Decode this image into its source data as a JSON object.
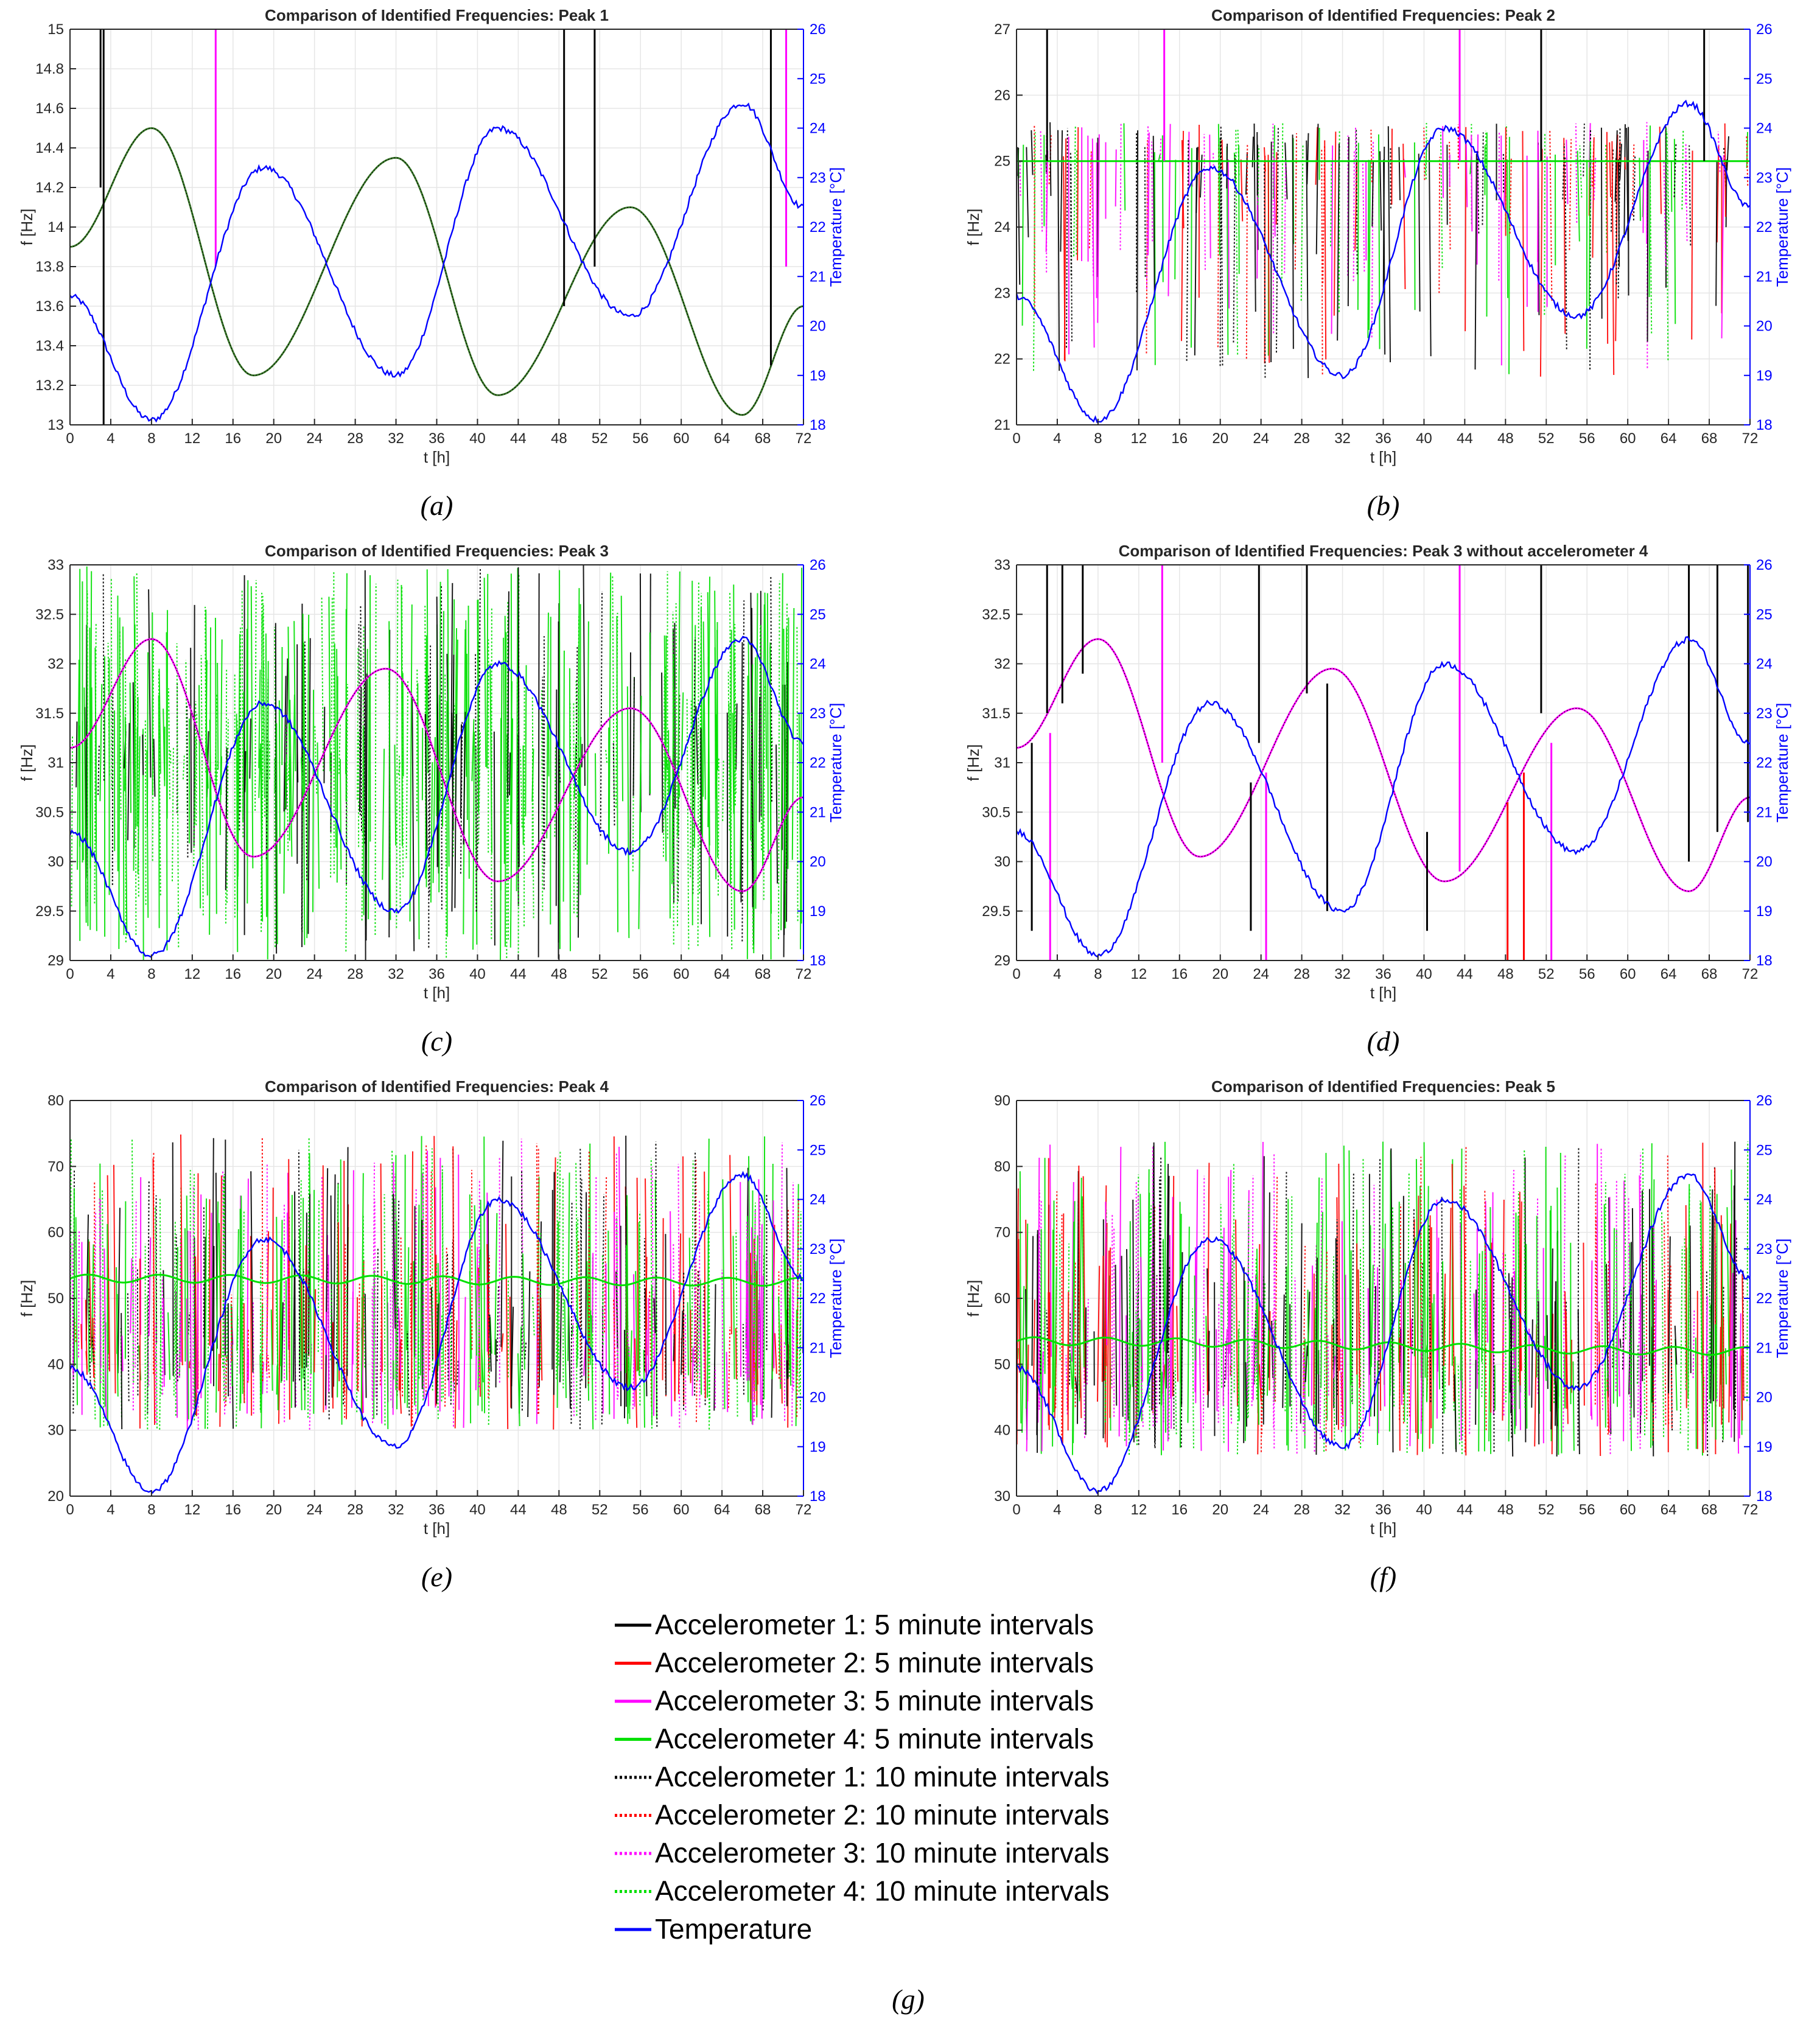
{
  "colors": {
    "acc1": "#000000",
    "acc2": "#ff0000",
    "acc3": "#ff00ff",
    "acc4": "#00e000",
    "temp": "#0000ff",
    "grid": "#e6e6e6",
    "axis": "#262626"
  },
  "legend": [
    {
      "label": "Accelerometer 1: 5 minute intervals",
      "color": "#000000",
      "dash": "solid"
    },
    {
      "label": "Accelerometer 2: 5 minute intervals",
      "color": "#ff0000",
      "dash": "solid"
    },
    {
      "label": "Accelerometer 3: 5 minute intervals",
      "color": "#ff00ff",
      "dash": "solid"
    },
    {
      "label": "Accelerometer 4: 5 minute intervals",
      "color": "#00e000",
      "dash": "solid"
    },
    {
      "label": "Accelerometer 1: 10 minute intervals",
      "color": "#000000",
      "dash": "dotted"
    },
    {
      "label": "Accelerometer 2: 10 minute intervals",
      "color": "#ff0000",
      "dash": "dotted"
    },
    {
      "label": "Accelerometer 3: 10 minute intervals",
      "color": "#ff00ff",
      "dash": "dotted"
    },
    {
      "label": "Accelerometer 4: 10 minute intervals",
      "color": "#00e000",
      "dash": "dotted"
    },
    {
      "label": "Temperature",
      "color": "#0000ff",
      "dash": "solid"
    }
  ],
  "legend_caption": "(g)",
  "chart_data": [
    {
      "type": "line",
      "panel": "(a)",
      "title": "Comparison of Identified Frequencies: Peak 1",
      "xlabel": "t [h]",
      "ylabel": "f [Hz]",
      "y2label": "Temperature [°C]",
      "xlim": [
        0,
        72
      ],
      "ylim": [
        13,
        15
      ],
      "y2lim": [
        18,
        26
      ],
      "xticks": [
        "0",
        "4",
        "8",
        "12",
        "16",
        "20",
        "24",
        "28",
        "32",
        "36",
        "40",
        "44",
        "48",
        "52",
        "56",
        "60",
        "64",
        "68",
        "72"
      ],
      "yticks": [
        "13",
        "13.2",
        "13.4",
        "13.6",
        "13.8",
        "14",
        "14.2",
        "14.4",
        "14.6",
        "14.8",
        "15"
      ],
      "y2ticks": [
        "18",
        "19",
        "20",
        "21",
        "22",
        "23",
        "24",
        "25",
        "26"
      ],
      "freq_curve": {
        "x": [
          0,
          8,
          18,
          32,
          42,
          55,
          66,
          72
        ],
        "y": [
          13.9,
          14.5,
          13.25,
          14.35,
          13.15,
          14.1,
          13.05,
          13.6
        ]
      },
      "temperature": {
        "x": [
          0,
          8,
          19,
          32,
          42,
          55,
          66,
          72
        ],
        "y": [
          20.6,
          18.1,
          23.2,
          19.0,
          24.0,
          20.2,
          24.5,
          22.4
        ]
      },
      "spikes": [
        {
          "t": 3.0,
          "from": 14.2,
          "to": 15,
          "series": "acc1"
        },
        {
          "t": 3.3,
          "from": 13,
          "to": 15,
          "series": "acc1"
        },
        {
          "t": 14.3,
          "from": 13.8,
          "to": 15,
          "series": "acc3"
        },
        {
          "t": 48.5,
          "from": 13.6,
          "to": 15,
          "series": "acc1"
        },
        {
          "t": 51.5,
          "from": 13.8,
          "to": 15,
          "series": "acc1"
        },
        {
          "t": 68.8,
          "from": 13.3,
          "to": 15,
          "series": "acc1"
        },
        {
          "t": 70.3,
          "from": 13.8,
          "to": 15,
          "series": "acc3"
        }
      ],
      "noise": null
    },
    {
      "type": "line",
      "panel": "(b)",
      "title": "Comparison of Identified Frequencies: Peak 2",
      "xlabel": "t [h]",
      "ylabel": "f [Hz]",
      "y2label": "Temperature [°C]",
      "xlim": [
        0,
        72
      ],
      "ylim": [
        21,
        27
      ],
      "y2lim": [
        18,
        26
      ],
      "xticks": [
        "0",
        "4",
        "8",
        "12",
        "16",
        "20",
        "24",
        "28",
        "32",
        "36",
        "40",
        "44",
        "48",
        "52",
        "56",
        "60",
        "64",
        "68",
        "72"
      ],
      "yticks": [
        "21",
        "22",
        "23",
        "24",
        "25",
        "26",
        "27"
      ],
      "y2ticks": [
        "18",
        "19",
        "20",
        "21",
        "22",
        "23",
        "24",
        "25",
        "26"
      ],
      "freq_curve": {
        "x": [
          0,
          72
        ],
        "y": [
          25.0,
          25.0
        ]
      },
      "temperature": {
        "x": [
          0,
          8,
          19,
          32,
          42,
          55,
          66,
          72
        ],
        "y": [
          20.6,
          18.1,
          23.2,
          19.0,
          24.0,
          20.2,
          24.5,
          22.4
        ]
      },
      "spikes": [
        {
          "t": 3.0,
          "from": 25,
          "to": 27,
          "series": "acc1"
        },
        {
          "t": 14.5,
          "from": 25,
          "to": 27,
          "series": "acc3"
        },
        {
          "t": 43.5,
          "from": 25,
          "to": 27,
          "series": "acc3"
        },
        {
          "t": 51.5,
          "from": 25,
          "to": 27,
          "series": "acc1"
        },
        {
          "t": 67.5,
          "from": 25,
          "to": 27,
          "series": "acc1"
        }
      ],
      "noise": {
        "center": 25.0,
        "low": 21.7,
        "high": 25.6,
        "density": 260,
        "colors": [
          "acc1",
          "acc2",
          "acc3",
          "acc4"
        ]
      }
    },
    {
      "type": "line",
      "panel": "(c)",
      "title": "Comparison of Identified Frequencies: Peak 3",
      "xlabel": "t [h]",
      "ylabel": "f [Hz]",
      "y2label": "Temperature [°C]",
      "xlim": [
        0,
        72
      ],
      "ylim": [
        29,
        33
      ],
      "y2lim": [
        18,
        26
      ],
      "xticks": [
        "0",
        "4",
        "8",
        "12",
        "16",
        "20",
        "24",
        "28",
        "32",
        "36",
        "40",
        "44",
        "48",
        "52",
        "56",
        "60",
        "64",
        "68",
        "72"
      ],
      "yticks": [
        "29",
        "29.5",
        "30",
        "30.5",
        "31",
        "31.5",
        "32",
        "32.5",
        "33"
      ],
      "y2ticks": [
        "18",
        "19",
        "20",
        "21",
        "22",
        "23",
        "24",
        "25",
        "26"
      ],
      "freq_curve": {
        "x": [
          0,
          8,
          18,
          31,
          42,
          55,
          66,
          72
        ],
        "y": [
          31.15,
          32.25,
          30.05,
          31.95,
          29.8,
          31.55,
          29.7,
          30.65
        ]
      },
      "temperature": {
        "x": [
          0,
          8,
          19,
          32,
          42,
          55,
          66,
          72
        ],
        "y": [
          20.6,
          18.1,
          23.2,
          19.0,
          24.0,
          20.2,
          24.5,
          22.4
        ]
      },
      "spikes": [],
      "noise": {
        "center": 31.0,
        "low": 29.0,
        "high": 33.0,
        "density": 420,
        "colors": [
          "acc4",
          "acc4",
          "acc4",
          "acc1"
        ]
      }
    },
    {
      "type": "line",
      "panel": "(d)",
      "title": "Comparison of Identified Frequencies: Peak 3 without accelerometer 4",
      "xlabel": "t [h]",
      "ylabel": "f [Hz]",
      "y2label": "Temperature [°C]",
      "xlim": [
        0,
        72
      ],
      "ylim": [
        29,
        33
      ],
      "y2lim": [
        18,
        26
      ],
      "xticks": [
        "0",
        "4",
        "8",
        "12",
        "16",
        "20",
        "24",
        "28",
        "32",
        "36",
        "40",
        "44",
        "48",
        "52",
        "56",
        "60",
        "64",
        "68",
        "72"
      ],
      "yticks": [
        "29",
        "29.5",
        "30",
        "30.5",
        "31",
        "31.5",
        "32",
        "32.5",
        "33"
      ],
      "y2ticks": [
        "18",
        "19",
        "20",
        "21",
        "22",
        "23",
        "24",
        "25",
        "26"
      ],
      "freq_curve": {
        "x": [
          0,
          8,
          18,
          31,
          42,
          55,
          66,
          72
        ],
        "y": [
          31.15,
          32.25,
          30.05,
          31.95,
          29.8,
          31.55,
          29.7,
          30.65
        ]
      },
      "temperature": {
        "x": [
          0,
          8,
          19,
          32,
          42,
          55,
          66,
          72
        ],
        "y": [
          20.6,
          18.1,
          23.2,
          19.0,
          24.0,
          20.2,
          24.5,
          22.4
        ]
      },
      "spikes": [
        {
          "t": 1.5,
          "from": 29.3,
          "to": 31.2,
          "series": "acc1"
        },
        {
          "t": 3.0,
          "from": 31.5,
          "to": 33,
          "series": "acc1"
        },
        {
          "t": 3.3,
          "from": 29,
          "to": 31.3,
          "series": "acc3"
        },
        {
          "t": 4.5,
          "from": 31.6,
          "to": 33,
          "series": "acc1"
        },
        {
          "t": 6.5,
          "from": 31.9,
          "to": 33,
          "series": "acc1"
        },
        {
          "t": 14.3,
          "from": 31.0,
          "to": 33,
          "series": "acc3"
        },
        {
          "t": 23.0,
          "from": 29.3,
          "to": 30.8,
          "series": "acc1"
        },
        {
          "t": 23.8,
          "from": 31.2,
          "to": 33,
          "series": "acc1"
        },
        {
          "t": 24.5,
          "from": 29,
          "to": 30.9,
          "series": "acc3"
        },
        {
          "t": 28.5,
          "from": 31.7,
          "to": 33,
          "series": "acc1"
        },
        {
          "t": 30.5,
          "from": 29.5,
          "to": 31.8,
          "series": "acc1"
        },
        {
          "t": 40.3,
          "from": 29.3,
          "to": 30.3,
          "series": "acc1"
        },
        {
          "t": 43.5,
          "from": 29.9,
          "to": 33,
          "series": "acc3"
        },
        {
          "t": 48.2,
          "from": 29,
          "to": 30.6,
          "series": "acc2"
        },
        {
          "t": 49.8,
          "from": 29,
          "to": 30.9,
          "series": "acc2"
        },
        {
          "t": 51.5,
          "from": 31.5,
          "to": 33,
          "series": "acc1"
        },
        {
          "t": 52.5,
          "from": 29,
          "to": 31.2,
          "series": "acc3"
        },
        {
          "t": 66.0,
          "from": 30.0,
          "to": 33,
          "series": "acc1"
        },
        {
          "t": 68.8,
          "from": 30.3,
          "to": 33,
          "series": "acc1"
        },
        {
          "t": 71.8,
          "from": 30.4,
          "to": 33,
          "series": "acc1"
        }
      ],
      "noise": null
    },
    {
      "type": "line",
      "panel": "(e)",
      "title": "Comparison of Identified Frequencies: Peak 4",
      "xlabel": "t [h]",
      "ylabel": "f [Hz]",
      "y2label": "Temperature [°C]",
      "xlim": [
        0,
        72
      ],
      "ylim": [
        20,
        80
      ],
      "y2lim": [
        18,
        26
      ],
      "xticks": [
        "0",
        "4",
        "8",
        "12",
        "16",
        "20",
        "24",
        "28",
        "32",
        "36",
        "40",
        "44",
        "48",
        "52",
        "56",
        "60",
        "64",
        "68",
        "72"
      ],
      "yticks": [
        "20",
        "30",
        "40",
        "50",
        "60",
        "70",
        "80"
      ],
      "y2ticks": [
        "18",
        "19",
        "20",
        "21",
        "22",
        "23",
        "24",
        "25",
        "26"
      ],
      "freq_curve": {
        "x": [
          0,
          72
        ],
        "y": [
          53.0,
          52.5
        ]
      },
      "temperature": {
        "x": [
          0,
          8,
          19,
          32,
          42,
          55,
          66,
          72
        ],
        "y": [
          20.6,
          18.1,
          23.2,
          19.0,
          24.0,
          20.2,
          24.5,
          22.4
        ]
      },
      "spikes": [],
      "noise": {
        "center": 42.0,
        "low": 30.0,
        "high": 75.0,
        "density": 520,
        "colors": [
          "acc4",
          "acc1",
          "acc3",
          "acc4",
          "acc2"
        ]
      }
    },
    {
      "type": "line",
      "panel": "(f)",
      "title": "Comparison of Identified Frequencies: Peak 5",
      "xlabel": "t [h]",
      "ylabel": "f [Hz]",
      "y2label": "Temperature [°C]",
      "xlim": [
        0,
        72
      ],
      "ylim": [
        30,
        90
      ],
      "y2lim": [
        18,
        26
      ],
      "xticks": [
        "0",
        "4",
        "8",
        "12",
        "16",
        "20",
        "24",
        "28",
        "32",
        "36",
        "40",
        "44",
        "48",
        "52",
        "56",
        "60",
        "64",
        "68",
        "72"
      ],
      "yticks": [
        "30",
        "40",
        "50",
        "60",
        "70",
        "80",
        "90"
      ],
      "y2ticks": [
        "18",
        "19",
        "20",
        "21",
        "22",
        "23",
        "24",
        "25",
        "26"
      ],
      "freq_curve": {
        "x": [
          0,
          72
        ],
        "y": [
          53.5,
          52.0
        ]
      },
      "temperature": {
        "x": [
          0,
          8,
          19,
          32,
          42,
          55,
          66,
          72
        ],
        "y": [
          20.6,
          18.1,
          23.2,
          19.0,
          24.0,
          20.2,
          24.5,
          22.4
        ]
      },
      "spikes": [],
      "noise": {
        "center": 50.0,
        "low": 36.0,
        "high": 84.0,
        "density": 520,
        "colors": [
          "acc4",
          "acc1",
          "acc3",
          "acc4",
          "acc2"
        ]
      }
    }
  ]
}
